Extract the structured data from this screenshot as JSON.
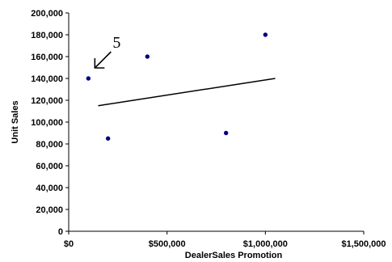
{
  "chart_data": {
    "type": "scatter",
    "xlabel": "DealerSales Promotion",
    "ylabel": "Unit Sales",
    "xlim": [
      0,
      1500000
    ],
    "ylim": [
      0,
      200000
    ],
    "x_ticks": [
      0,
      500000,
      1000000,
      1500000
    ],
    "x_tick_labels": [
      "$0",
      "$500,000",
      "$1,000,000",
      "$1,500,000"
    ],
    "y_ticks": [
      0,
      20000,
      40000,
      60000,
      80000,
      100000,
      120000,
      140000,
      160000,
      180000,
      200000
    ],
    "y_tick_labels": [
      "0",
      "20,000",
      "40,000",
      "60,000",
      "80,000",
      "100,000",
      "120,000",
      "140,000",
      "160,000",
      "180,000",
      "200,000"
    ],
    "grid": false,
    "marker_color": "#00007f",
    "points": [
      {
        "x": 100000,
        "y": 140000
      },
      {
        "x": 200000,
        "y": 85000
      },
      {
        "x": 400000,
        "y": 160000
      },
      {
        "x": 800000,
        "y": 90000
      },
      {
        "x": 1000000,
        "y": 180000
      }
    ],
    "trendline": {
      "x": [
        150000,
        1050000
      ],
      "y": [
        115000,
        140000
      ]
    },
    "annotation": {
      "text": "5",
      "points_to": {
        "x": 100000,
        "y": 140000
      }
    }
  }
}
